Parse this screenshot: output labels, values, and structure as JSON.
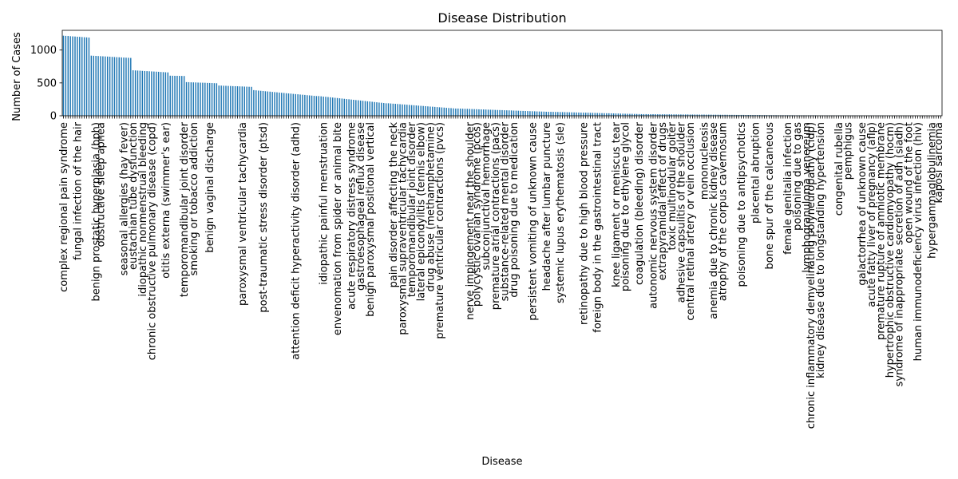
{
  "chart_data": {
    "type": "bar",
    "title": "Disease Distribution",
    "xlabel": "Disease",
    "ylabel": "Number of Cases",
    "ylim": [
      0,
      1300
    ],
    "yticks": [
      0,
      500,
      1000
    ],
    "grid": false,
    "legend": "none",
    "bar_color": "#1f77b4",
    "bar_count": 379,
    "value_segments": [
      {
        "count": 12,
        "start": 1219,
        "end": 1190
      },
      {
        "count": 18,
        "start": 915,
        "end": 880
      },
      {
        "count": 16,
        "start": 692,
        "end": 660
      },
      {
        "count": 7,
        "start": 610,
        "end": 605
      },
      {
        "count": 14,
        "start": 512,
        "end": 495
      },
      {
        "count": 15,
        "start": 460,
        "end": 440
      },
      {
        "count": 28,
        "start": 390,
        "end": 300
      },
      {
        "count": 30,
        "start": 300,
        "end": 190
      },
      {
        "count": 30,
        "start": 190,
        "end": 110
      },
      {
        "count": 40,
        "start": 110,
        "end": 60
      },
      {
        "count": 40,
        "start": 60,
        "end": 25
      },
      {
        "count": 60,
        "start": 25,
        "end": 8
      },
      {
        "count": 69,
        "start": 8,
        "end": 1
      }
    ],
    "visible_category_labels": [
      {
        "index": 0,
        "label": "complex regional pain syndrome"
      },
      {
        "index": 6,
        "label": "fungal infection of the hair"
      },
      {
        "index": 14,
        "label": "benign prostatic hyperplasia (bph)"
      },
      {
        "index": 16,
        "label": "obstructive sleep apnea"
      },
      {
        "index": 26,
        "label": "seasonal allergies (hay fever)"
      },
      {
        "index": 30,
        "label": "eustachian tube dysfunction"
      },
      {
        "index": 34,
        "label": "idiopathic nonmenstrual bleeding"
      },
      {
        "index": 38,
        "label": "chronic obstructive pulmonary disease (copd)"
      },
      {
        "index": 44,
        "label": "otitis externa (swimmer's ear)"
      },
      {
        "index": 52,
        "label": "temporomandibular joint disorder"
      },
      {
        "index": 56,
        "label": "smoking or tobacco addiction"
      },
      {
        "index": 63,
        "label": "benign vaginal discharge"
      },
      {
        "index": 77,
        "label": "paroxysmal ventricular tachycardia"
      },
      {
        "index": 86,
        "label": "post-traumatic stress disorder (ptsd)"
      },
      {
        "index": 100,
        "label": "attention deficit hyperactivity disorder (adhd)"
      },
      {
        "index": 112,
        "label": "idiopathic painful menstruation"
      },
      {
        "index": 118,
        "label": "envenomation from spider or animal bite"
      },
      {
        "index": 124,
        "label": "acute respiratory distress syndrome"
      },
      {
        "index": 128,
        "label": "gastroesophageal reflux disease"
      },
      {
        "index": 132,
        "label": "benign paroxysmal positional vertical"
      },
      {
        "index": 142,
        "label": "pain disorder affecting the neck"
      },
      {
        "index": 146,
        "label": "paroxysmal supraventricular tachycardia"
      },
      {
        "index": 150,
        "label": "temporomandibular joint disorder"
      },
      {
        "index": 154,
        "label": "lateral epicondylitis (tennis elbow)"
      },
      {
        "index": 158,
        "label": "drug abuse (methamphetamine)"
      },
      {
        "index": 162,
        "label": "premature ventricular contractions (pvcs)"
      },
      {
        "index": 175,
        "label": "nerve impingement near the shoulder"
      },
      {
        "index": 178,
        "label": "polycystic ovarian syndrome (pcos)"
      },
      {
        "index": 182,
        "label": "subconjunctival hemorrhage"
      },
      {
        "index": 186,
        "label": "premature atrial contractions (pacs)"
      },
      {
        "index": 190,
        "label": "substance-related mental disorder"
      },
      {
        "index": 194,
        "label": "drug poisoning due to medication"
      },
      {
        "index": 202,
        "label": "persistent vomiting of unknown cause"
      },
      {
        "index": 208,
        "label": "headache after lumbar puncture"
      },
      {
        "index": 214,
        "label": "systemic lupus erythematosis (sle)"
      },
      {
        "index": 224,
        "label": "retinopathy due to high blood pressure"
      },
      {
        "index": 230,
        "label": "foreign body in the gastrointestinal tract"
      },
      {
        "index": 238,
        "label": "knee ligament or meniscus tear"
      },
      {
        "index": 242,
        "label": "poisoning due to ethylene glycol"
      },
      {
        "index": 248,
        "label": "coagulation (bleeding) disorder"
      },
      {
        "index": 254,
        "label": "autonomic nervous system disorder"
      },
      {
        "index": 258,
        "label": "extrapyramidal effect of drugs"
      },
      {
        "index": 262,
        "label": "toxic multinodular goiter"
      },
      {
        "index": 266,
        "label": "adhesive capsulitis of the shoulder"
      },
      {
        "index": 270,
        "label": "central retinal artery or vein occlusion"
      },
      {
        "index": 276,
        "label": "mononucleosis"
      },
      {
        "index": 280,
        "label": "anemia due to chronic kidney disease"
      },
      {
        "index": 284,
        "label": "atrophy of the corpus cavernosum"
      },
      {
        "index": 292,
        "label": "poisoning due to antipsychotics"
      },
      {
        "index": 298,
        "label": "placental abruption"
      },
      {
        "index": 304,
        "label": "bone spur of the calcaneous"
      },
      {
        "index": 312,
        "label": "female genitalia infection"
      },
      {
        "index": 316,
        "label": "poisoning due to gas"
      },
      {
        "index": 320,
        "label": "lymphogranuloma venereum"
      },
      {
        "index": 322,
        "label": "chronic inflammatory demyelinating polyneuropathy (cidp)"
      },
      {
        "index": 326,
        "label": "kidney disease due to longstanding hypertension"
      },
      {
        "index": 334,
        "label": "congenital rubella"
      },
      {
        "index": 338,
        "label": "pemphigus"
      },
      {
        "index": 344,
        "label": "galactorrhea of unknown cause"
      },
      {
        "index": 348,
        "label": "acute fatty liver of pregnancy (aflp)"
      },
      {
        "index": 352,
        "label": "premature rupture of amniotic membrane"
      },
      {
        "index": 356,
        "label": "hypertrophic obstructive cardiomyopathy (hocm)"
      },
      {
        "index": 360,
        "label": "syndrome of inappropriate secretion of adh (siadh)"
      },
      {
        "index": 364,
        "label": "open wound of the foot"
      },
      {
        "index": 368,
        "label": "human immunodeficiency virus infection (hiv)"
      },
      {
        "index": 374,
        "label": "hypergammaglobulinemia"
      },
      {
        "index": 377,
        "label": "kaposi sarcoma"
      }
    ]
  }
}
